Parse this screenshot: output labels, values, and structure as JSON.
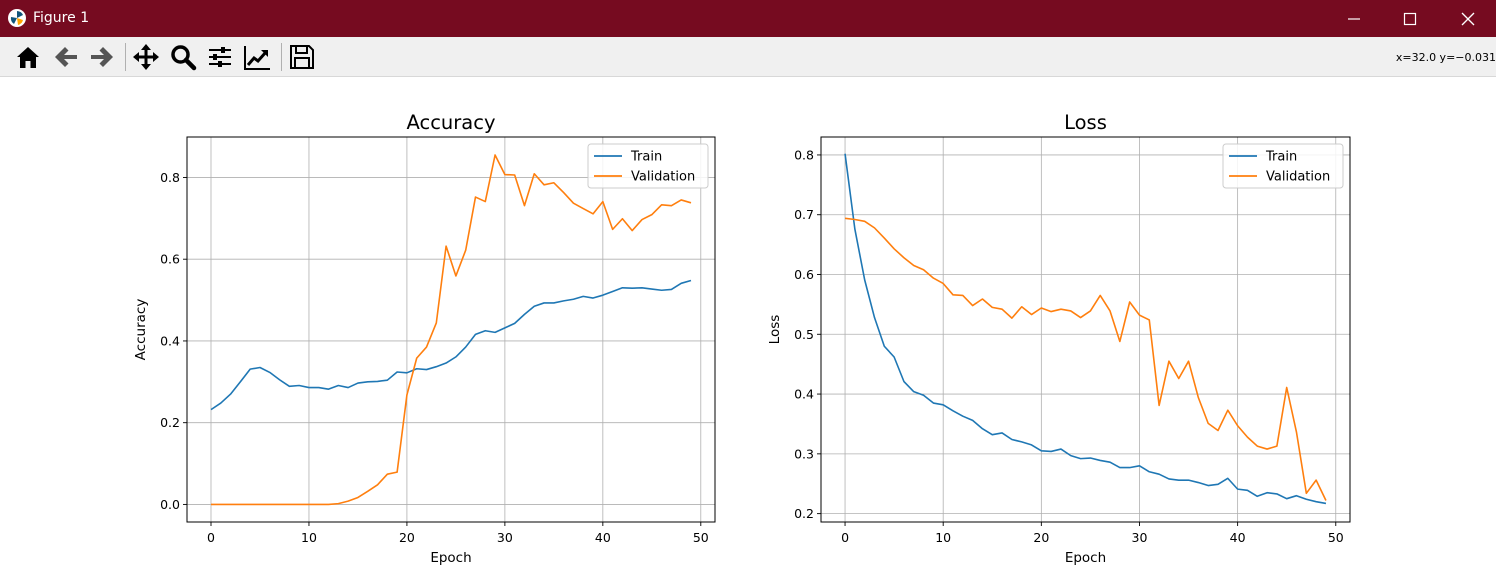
{
  "window": {
    "title": "Figure 1",
    "titlebar_color": "#760b20",
    "controls": [
      "minimize-icon",
      "maximize-icon",
      "close-icon"
    ]
  },
  "toolbar": {
    "buttons": [
      "home-icon",
      "back-icon",
      "forward-icon",
      "pan-icon",
      "zoom-icon",
      "configure-subplots-icon",
      "edit-axis-icon",
      "save-icon"
    ],
    "coords_text": "x=32.0 y=−0.031"
  },
  "chart_data": [
    {
      "type": "line",
      "title": "Accuracy",
      "xlabel": "Epoch",
      "ylabel": "Accuracy",
      "xlim": [
        -2.45,
        51.45
      ],
      "ylim": [
        -0.043,
        0.899
      ],
      "xticks": [
        0,
        10,
        20,
        30,
        40,
        50
      ],
      "yticks": [
        0.0,
        0.2,
        0.4,
        0.6,
        0.8
      ],
      "xtick_labels": [
        "0",
        "10",
        "20",
        "30",
        "40",
        "50"
      ],
      "ytick_labels": [
        "0.0",
        "0.2",
        "0.4",
        "0.6",
        "0.8"
      ],
      "grid": true,
      "legend": "upper right",
      "x": [
        0,
        1,
        2,
        3,
        4,
        5,
        6,
        7,
        8,
        9,
        10,
        11,
        12,
        13,
        14,
        15,
        16,
        17,
        18,
        19,
        20,
        21,
        22,
        23,
        24,
        25,
        26,
        27,
        28,
        29,
        30,
        31,
        32,
        33,
        34,
        35,
        36,
        37,
        38,
        39,
        40,
        41,
        42,
        43,
        44,
        45,
        46,
        47,
        48,
        49
      ],
      "series": [
        {
          "name": "Train",
          "color": "#1f77b4",
          "values": [
            0.232,
            0.248,
            0.27,
            0.3,
            0.331,
            0.335,
            0.323,
            0.305,
            0.289,
            0.291,
            0.286,
            0.286,
            0.282,
            0.291,
            0.286,
            0.297,
            0.3,
            0.301,
            0.304,
            0.324,
            0.322,
            0.332,
            0.33,
            0.337,
            0.346,
            0.361,
            0.385,
            0.416,
            0.425,
            0.421,
            0.432,
            0.443,
            0.465,
            0.485,
            0.493,
            0.493,
            0.498,
            0.502,
            0.509,
            0.505,
            0.512,
            0.521,
            0.53,
            0.529,
            0.53,
            0.527,
            0.524,
            0.526,
            0.541,
            0.548
          ]
        },
        {
          "name": "Validation",
          "color": "#ff7f0e",
          "values": [
            0.0,
            0.0,
            0.0,
            0.0,
            0.0,
            0.0,
            0.0,
            0.0,
            0.0,
            0.0,
            0.0,
            0.0,
            0.0,
            0.002,
            0.008,
            0.017,
            0.032,
            0.048,
            0.074,
            0.079,
            0.268,
            0.358,
            0.385,
            0.444,
            0.632,
            0.559,
            0.622,
            0.752,
            0.741,
            0.855,
            0.807,
            0.806,
            0.731,
            0.809,
            0.782,
            0.787,
            0.763,
            0.737,
            0.724,
            0.711,
            0.741,
            0.673,
            0.699,
            0.67,
            0.697,
            0.709,
            0.733,
            0.731,
            0.745,
            0.738
          ]
        }
      ]
    },
    {
      "type": "line",
      "title": "Loss",
      "xlabel": "Epoch",
      "ylabel": "Loss",
      "xlim": [
        -2.45,
        51.45
      ],
      "ylim": [
        0.186,
        0.83
      ],
      "xticks": [
        0,
        10,
        20,
        30,
        40,
        50
      ],
      "yticks": [
        0.2,
        0.3,
        0.4,
        0.5,
        0.6,
        0.7,
        0.8
      ],
      "xtick_labels": [
        "0",
        "10",
        "20",
        "30",
        "40",
        "50"
      ],
      "ytick_labels": [
        "0.2",
        "0.3",
        "0.4",
        "0.5",
        "0.6",
        "0.7",
        "0.8"
      ],
      "grid": true,
      "legend": "upper right",
      "x": [
        0,
        1,
        2,
        3,
        4,
        5,
        6,
        7,
        8,
        9,
        10,
        11,
        12,
        13,
        14,
        15,
        16,
        17,
        18,
        19,
        20,
        21,
        22,
        23,
        24,
        25,
        26,
        27,
        28,
        29,
        30,
        31,
        32,
        33,
        34,
        35,
        36,
        37,
        38,
        39,
        40,
        41,
        42,
        43,
        44,
        45,
        46,
        47,
        48,
        49
      ],
      "series": [
        {
          "name": "Train",
          "color": "#1f77b4",
          "values": [
            0.802,
            0.676,
            0.591,
            0.528,
            0.48,
            0.462,
            0.421,
            0.404,
            0.398,
            0.385,
            0.382,
            0.372,
            0.363,
            0.356,
            0.342,
            0.332,
            0.335,
            0.324,
            0.32,
            0.315,
            0.305,
            0.304,
            0.308,
            0.297,
            0.292,
            0.293,
            0.289,
            0.286,
            0.277,
            0.277,
            0.28,
            0.27,
            0.266,
            0.258,
            0.256,
            0.256,
            0.252,
            0.247,
            0.249,
            0.259,
            0.241,
            0.239,
            0.229,
            0.235,
            0.233,
            0.225,
            0.23,
            0.224,
            0.22,
            0.217
          ]
        },
        {
          "name": "Validation",
          "color": "#ff7f0e",
          "values": [
            0.694,
            0.692,
            0.689,
            0.678,
            0.661,
            0.643,
            0.628,
            0.615,
            0.608,
            0.594,
            0.585,
            0.566,
            0.565,
            0.548,
            0.559,
            0.545,
            0.542,
            0.527,
            0.546,
            0.533,
            0.544,
            0.538,
            0.542,
            0.539,
            0.528,
            0.539,
            0.565,
            0.539,
            0.488,
            0.554,
            0.532,
            0.524,
            0.381,
            0.455,
            0.426,
            0.455,
            0.394,
            0.351,
            0.339,
            0.373,
            0.347,
            0.328,
            0.313,
            0.308,
            0.313,
            0.411,
            0.336,
            0.234,
            0.256,
            0.222
          ]
        }
      ]
    }
  ]
}
